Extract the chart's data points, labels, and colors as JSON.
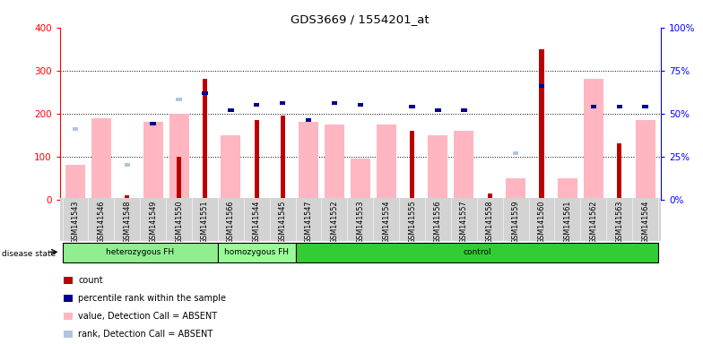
{
  "title": "GDS3669 / 1554201_at",
  "samples": [
    "GSM141543",
    "GSM141546",
    "GSM141548",
    "GSM141549",
    "GSM141550",
    "GSM141551",
    "GSM141566",
    "GSM141544",
    "GSM141545",
    "GSM141547",
    "GSM141552",
    "GSM141553",
    "GSM141554",
    "GSM141555",
    "GSM141556",
    "GSM141557",
    "GSM141558",
    "GSM141559",
    "GSM141560",
    "GSM141561",
    "GSM141562",
    "GSM141563",
    "GSM141564"
  ],
  "count_values": [
    null,
    null,
    10,
    null,
    100,
    280,
    null,
    185,
    195,
    null,
    null,
    null,
    null,
    160,
    null,
    null,
    15,
    null,
    350,
    null,
    null,
    130,
    null
  ],
  "value_absent": [
    80,
    190,
    null,
    180,
    200,
    null,
    150,
    null,
    null,
    180,
    175,
    95,
    175,
    null,
    150,
    160,
    null,
    50,
    null,
    50,
    280,
    null,
    185
  ],
  "rank_absent_pct": [
    41,
    null,
    20,
    null,
    58,
    null,
    null,
    null,
    null,
    null,
    null,
    null,
    null,
    null,
    null,
    null,
    null,
    27,
    null,
    null,
    null,
    null,
    null
  ],
  "percentile_pct": [
    null,
    null,
    null,
    44,
    null,
    62,
    52,
    55,
    56,
    46,
    56,
    55,
    null,
    54,
    52,
    52,
    null,
    null,
    66,
    null,
    54,
    54,
    54
  ],
  "disease_groups": [
    {
      "label": "heterozygous FH",
      "start": 0,
      "end": 6,
      "color": "#90EE90"
    },
    {
      "label": "homozygous FH",
      "start": 6,
      "end": 9,
      "color": "#98FB98"
    },
    {
      "label": "control",
      "start": 9,
      "end": 23,
      "color": "#32CD32"
    }
  ],
  "ylim_left": [
    0,
    400
  ],
  "ylim_right": [
    0,
    100
  ],
  "yticks_left": [
    0,
    100,
    200,
    300,
    400
  ],
  "yticks_right": [
    0,
    25,
    50,
    75,
    100
  ],
  "count_color": "#BB0000",
  "percentile_color": "#00008B",
  "value_absent_color": "#FFB6C1",
  "rank_absent_color": "#B0C4DE",
  "bg_color": "#D3D3D3"
}
